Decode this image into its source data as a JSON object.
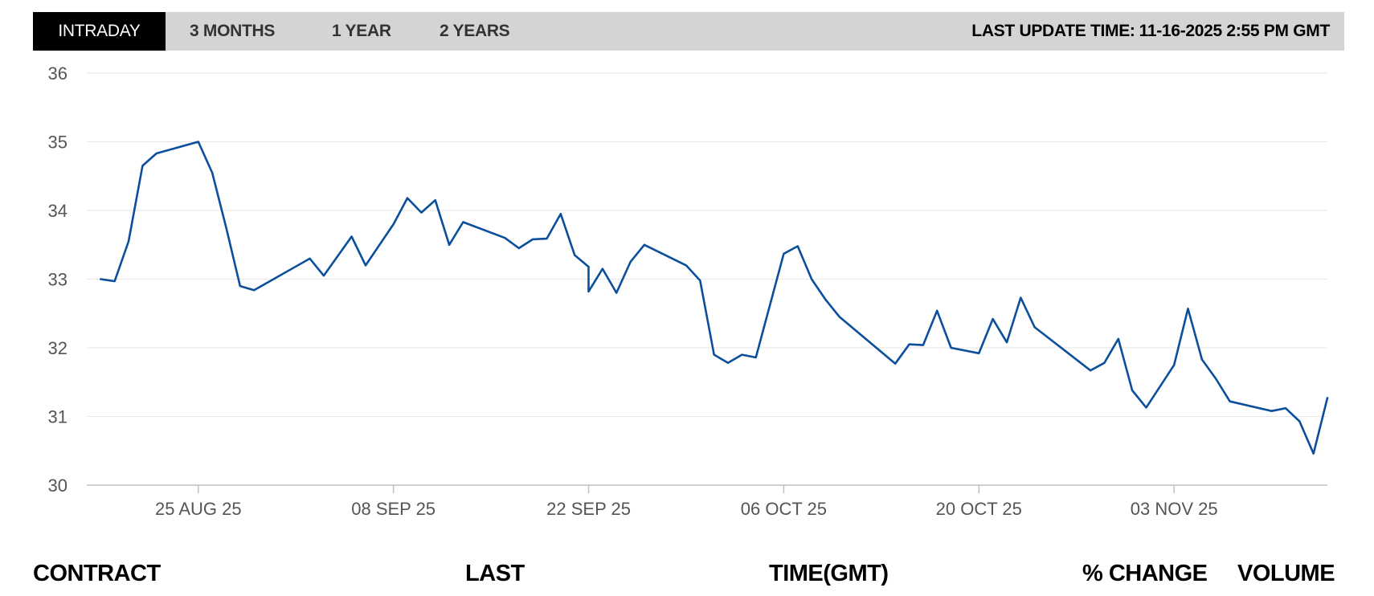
{
  "tabs": [
    {
      "label": "INTRADAY",
      "active": true
    },
    {
      "label": "3 MONTHS",
      "active": false
    },
    {
      "label": "1 YEAR",
      "active": false
    },
    {
      "label": "2 YEARS",
      "active": false
    }
  ],
  "last_update": {
    "label": "LAST UPDATE TIME:",
    "value": "11-16-2025 2:55 PM GMT"
  },
  "table_headers": {
    "contract": "CONTRACT",
    "last": "LAST",
    "time": "TIME(GMT)",
    "change": "% CHANGE",
    "volume": "VOLUME"
  },
  "colors": {
    "line": "#0b4f9c",
    "grid": "#e6e6e6",
    "axis": "#c0c0c0"
  },
  "chart_data": {
    "type": "line",
    "title": "",
    "xlabel": "",
    "ylabel": "",
    "ylim": [
      30,
      36
    ],
    "yticks": [
      30,
      31,
      32,
      33,
      34,
      35,
      36
    ],
    "xticks": [
      {
        "date": "2025-08-25",
        "label": "25 AUG 25"
      },
      {
        "date": "2025-09-08",
        "label": "08 SEP 25"
      },
      {
        "date": "2025-09-22",
        "label": "22 SEP 25"
      },
      {
        "date": "2025-10-06",
        "label": "06 OCT 25"
      },
      {
        "date": "2025-10-20",
        "label": "20 OCT 25"
      },
      {
        "date": "2025-11-03",
        "label": "03 NOV 25"
      }
    ],
    "xlim": [
      "2025-08-17",
      "2025-11-14"
    ],
    "grid": true,
    "series": [
      {
        "points": [
          [
            "2025-08-18",
            33.0
          ],
          [
            "2025-08-19",
            32.97
          ],
          [
            "2025-08-20",
            33.55
          ],
          [
            "2025-08-21",
            34.65
          ],
          [
            "2025-08-22",
            34.83
          ],
          [
            "2025-08-25",
            35.0
          ],
          [
            "2025-08-26",
            34.55
          ],
          [
            "2025-08-27",
            33.75
          ],
          [
            "2025-08-28",
            32.9
          ],
          [
            "2025-08-29",
            32.84
          ],
          [
            "2025-09-02",
            33.3
          ],
          [
            "2025-09-03",
            33.05
          ],
          [
            "2025-09-05",
            33.62
          ],
          [
            "2025-09-06",
            33.2
          ],
          [
            "2025-09-08",
            33.8
          ],
          [
            "2025-09-09",
            34.18
          ],
          [
            "2025-09-10",
            33.97
          ],
          [
            "2025-09-11",
            34.15
          ],
          [
            "2025-09-12",
            33.5
          ],
          [
            "2025-09-13",
            33.83
          ],
          [
            "2025-09-16",
            33.6
          ],
          [
            "2025-09-17",
            33.45
          ],
          [
            "2025-09-18",
            33.58
          ],
          [
            "2025-09-19",
            33.59
          ],
          [
            "2025-09-20",
            33.95
          ],
          [
            "2025-09-21",
            33.35
          ],
          [
            "2025-09-22",
            33.18
          ],
          [
            "2025-09-22",
            32.82
          ],
          [
            "2025-09-23",
            33.15
          ],
          [
            "2025-09-24",
            32.8
          ],
          [
            "2025-09-25",
            33.25
          ],
          [
            "2025-09-26",
            33.5
          ],
          [
            "2025-09-29",
            33.2
          ],
          [
            "2025-09-30",
            32.98
          ],
          [
            "2025-10-01",
            31.9
          ],
          [
            "2025-10-02",
            31.78
          ],
          [
            "2025-10-03",
            31.9
          ],
          [
            "2025-10-04",
            31.86
          ],
          [
            "2025-10-06",
            33.37
          ],
          [
            "2025-10-07",
            33.48
          ],
          [
            "2025-10-08",
            33.0
          ],
          [
            "2025-10-09",
            32.7
          ],
          [
            "2025-10-10",
            32.45
          ],
          [
            "2025-10-14",
            31.77
          ],
          [
            "2025-10-15",
            32.05
          ],
          [
            "2025-10-16",
            32.04
          ],
          [
            "2025-10-17",
            32.54
          ],
          [
            "2025-10-18",
            32.0
          ],
          [
            "2025-10-20",
            31.92
          ],
          [
            "2025-10-21",
            32.42
          ],
          [
            "2025-10-22",
            32.08
          ],
          [
            "2025-10-23",
            32.73
          ],
          [
            "2025-10-24",
            32.3
          ],
          [
            "2025-10-28",
            31.67
          ],
          [
            "2025-10-29",
            31.78
          ],
          [
            "2025-10-30",
            32.13
          ],
          [
            "2025-10-31",
            31.38
          ],
          [
            "2025-11-01",
            31.13
          ],
          [
            "2025-11-03",
            31.75
          ],
          [
            "2025-11-04",
            32.57
          ],
          [
            "2025-11-05",
            31.83
          ],
          [
            "2025-11-06",
            31.55
          ],
          [
            "2025-11-07",
            31.22
          ],
          [
            "2025-11-10",
            31.08
          ],
          [
            "2025-11-11",
            31.12
          ],
          [
            "2025-11-12",
            30.93
          ],
          [
            "2025-11-13",
            30.46
          ],
          [
            "2025-11-14",
            31.27
          ]
        ]
      }
    ]
  }
}
